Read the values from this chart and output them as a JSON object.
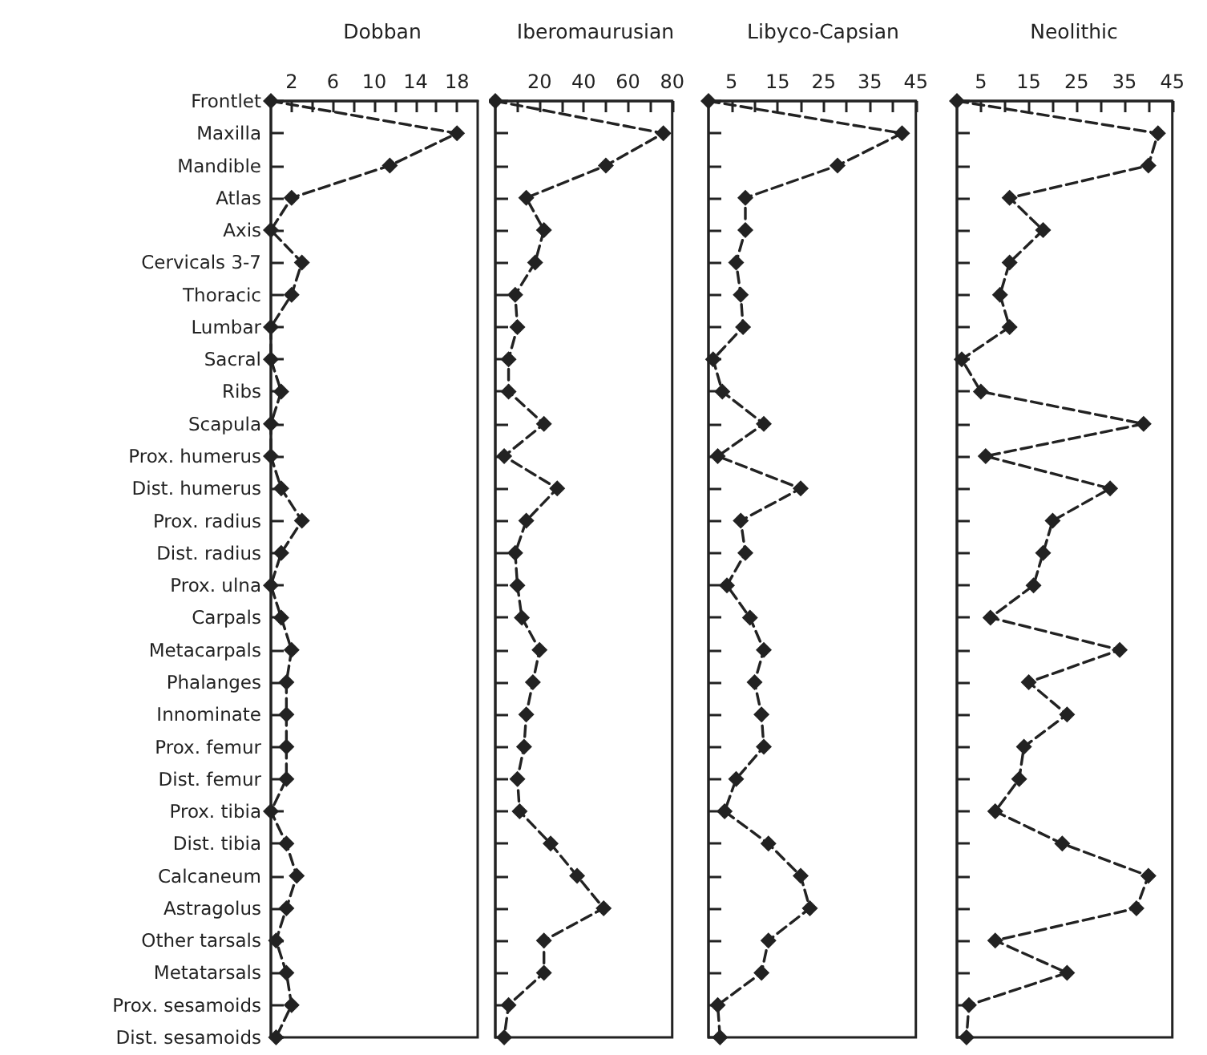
{
  "chart_data": [
    {
      "type": "line",
      "orientation": "horizontal",
      "title": "Dobban",
      "categories": [
        "Frontlet",
        "Maxilla",
        "Mandible",
        "Atlas",
        "Axis",
        "Cervicals 3-7",
        "Thoracic",
        "Lumbar",
        "Sacral",
        "Ribs",
        "Scapula",
        "Prox. humerus",
        "Dist. humerus",
        "Prox. radius",
        "Dist. radius",
        "Prox. ulna",
        "Carpals",
        "Metacarpals",
        "Phalanges",
        "Innominate",
        "Prox. femur",
        "Dist. femur",
        "Prox. tibia",
        "Dist. tibia",
        "Calcaneum",
        "Astragolus",
        "Other tarsals",
        "Metatarsals",
        "Prox. sesamoids",
        "Dist. sesamoids"
      ],
      "values": [
        0,
        18,
        11.5,
        2,
        0,
        3,
        2,
        0,
        0,
        1,
        0,
        0,
        1,
        3,
        1,
        0,
        1,
        2,
        1.5,
        1.5,
        1.5,
        1.5,
        0,
        1.5,
        2.5,
        1.5,
        0.5,
        1.5,
        2,
        0.5
      ],
      "color": "#222222",
      "xlim": [
        0,
        20
      ],
      "xticks": [
        2,
        {
          "value": 4,
          "label": null
        },
        6,
        {
          "value": 8,
          "label": null
        },
        10,
        {
          "value": 12,
          "label": null
        },
        14,
        {
          "value": 16,
          "label": null
        },
        18
      ],
      "marker": "diamond",
      "line_style": "dashed"
    },
    {
      "type": "line",
      "orientation": "horizontal",
      "title": "Iberomaurusian",
      "values": [
        0,
        76,
        50,
        14,
        22,
        18,
        9,
        10,
        6,
        6,
        22,
        4,
        28,
        14,
        9,
        10,
        12,
        20,
        17,
        14,
        13,
        10,
        11,
        25,
        37,
        49,
        22,
        22,
        6,
        4
      ],
      "color": "#222222",
      "xlim": [
        0,
        80
      ],
      "xticks": [
        {
          "value": 10,
          "label": null
        },
        20,
        {
          "value": 30,
          "label": null
        },
        40,
        {
          "value": 50,
          "label": null
        },
        60,
        {
          "value": 70,
          "label": null
        },
        80
      ],
      "marker": "diamond",
      "line_style": "dashed",
      "tick_labels": "x"
    },
    {
      "type": "line",
      "orientation": "horizontal",
      "title": "Libyco-Capsian",
      "values": [
        0,
        42,
        28,
        8,
        8,
        6,
        7,
        7.5,
        1,
        3,
        12,
        2,
        20,
        7,
        8,
        4,
        9,
        12,
        10,
        11.5,
        12,
        6,
        3.5,
        13,
        20,
        22,
        13,
        11.5,
        2,
        2.5
      ],
      "color": "#222222",
      "xlim": [
        0,
        45
      ],
      "xticks": [
        5,
        {
          "value": 10,
          "label": null
        },
        15,
        {
          "value": 20,
          "label": null
        },
        25,
        {
          "value": 30,
          "label": null
        },
        35,
        {
          "value": 40,
          "label": null
        },
        45
      ],
      "marker": "diamond",
      "line_style": "dashed",
      "tick_labels": "x"
    },
    {
      "type": "line",
      "orientation": "horizontal",
      "title": "Neolithic",
      "values": [
        0,
        42,
        40,
        11,
        18,
        11,
        9,
        11,
        1,
        5,
        39,
        6,
        32,
        20,
        18,
        16,
        7,
        34,
        15,
        23,
        14,
        13,
        8,
        22,
        40,
        37.5,
        8,
        23,
        2.5,
        2
      ],
      "color": "#222222",
      "xlim": [
        0,
        45
      ],
      "xticks": [
        5,
        {
          "value": 10,
          "label": null
        },
        15,
        {
          "value": 20,
          "label": null
        },
        25,
        {
          "value": 30,
          "label": null
        },
        35,
        {
          "value": 40,
          "label": null
        },
        45
      ],
      "marker": "diamond",
      "line_style": "dashed",
      "tick_labels": "x"
    }
  ]
}
